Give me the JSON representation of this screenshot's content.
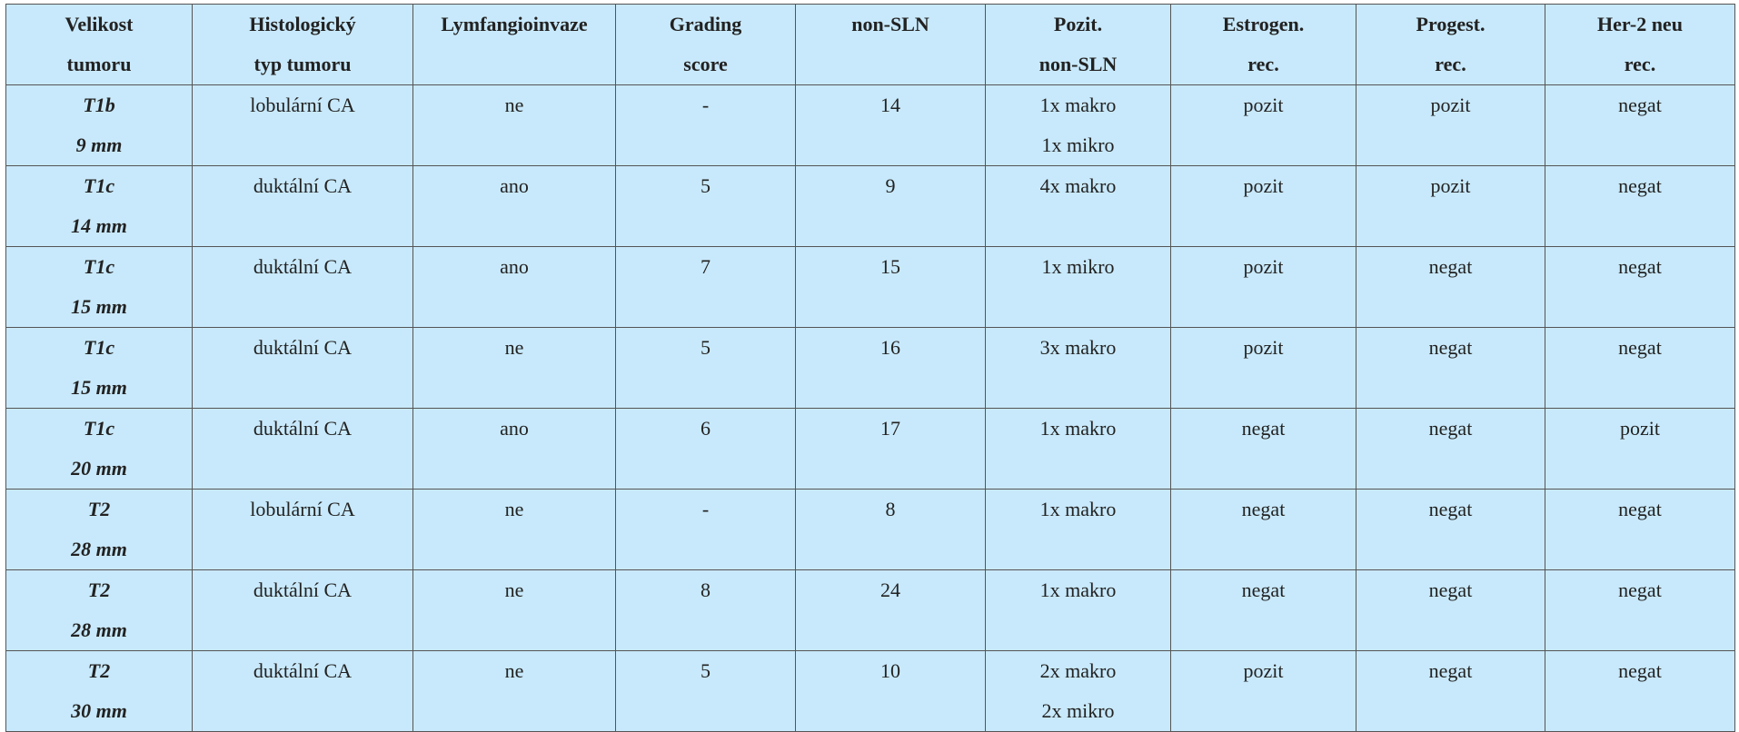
{
  "table": {
    "header": [
      [
        "Velikost",
        "tumoru"
      ],
      [
        "Histologický",
        "typ tumoru"
      ],
      [
        "Lymfangioinvaze"
      ],
      [
        "Grading",
        "score"
      ],
      [
        "non-SLN"
      ],
      [
        "Pozit.",
        "non-SLN"
      ],
      [
        "Estrogen.",
        "rec."
      ],
      [
        "Progest.",
        "rec."
      ],
      [
        "Her-2 neu",
        "rec."
      ]
    ],
    "rows": [
      [
        [
          "T1b",
          "9 mm"
        ],
        [
          "lobulární CA"
        ],
        [
          "ne"
        ],
        [
          "-"
        ],
        [
          14
        ],
        [
          "1x makro",
          "1x mikro"
        ],
        [
          "pozit"
        ],
        [
          "pozit"
        ],
        [
          "negat"
        ]
      ],
      [
        [
          "T1c",
          "14 mm"
        ],
        [
          "duktální CA"
        ],
        [
          "ano"
        ],
        [
          5
        ],
        [
          9
        ],
        [
          "4x makro"
        ],
        [
          "pozit"
        ],
        [
          "pozit"
        ],
        [
          "negat"
        ]
      ],
      [
        [
          "T1c",
          "15 mm"
        ],
        [
          "duktální CA"
        ],
        [
          "ano"
        ],
        [
          7
        ],
        [
          15
        ],
        [
          "1x mikro"
        ],
        [
          "pozit"
        ],
        [
          "negat"
        ],
        [
          "negat"
        ]
      ],
      [
        [
          "T1c",
          "15 mm"
        ],
        [
          "duktální CA"
        ],
        [
          "ne"
        ],
        [
          5
        ],
        [
          16
        ],
        [
          "3x makro"
        ],
        [
          "pozit"
        ],
        [
          "negat"
        ],
        [
          "negat"
        ]
      ],
      [
        [
          "T1c",
          "20 mm"
        ],
        [
          "duktální CA"
        ],
        [
          "ano"
        ],
        [
          6
        ],
        [
          17
        ],
        [
          "1x makro"
        ],
        [
          "negat"
        ],
        [
          "negat"
        ],
        [
          "pozit"
        ]
      ],
      [
        [
          "T2",
          "28 mm"
        ],
        [
          "lobulární CA"
        ],
        [
          "ne"
        ],
        [
          "-"
        ],
        [
          8
        ],
        [
          "1x makro"
        ],
        [
          "negat"
        ],
        [
          "negat"
        ],
        [
          "negat"
        ]
      ],
      [
        [
          "T2",
          "28 mm"
        ],
        [
          "duktální CA"
        ],
        [
          "ne"
        ],
        [
          8
        ],
        [
          24
        ],
        [
          "1x makro"
        ],
        [
          "negat"
        ],
        [
          "negat"
        ],
        [
          "negat"
        ]
      ],
      [
        [
          "T2",
          "30 mm"
        ],
        [
          "duktální CA"
        ],
        [
          "ne"
        ],
        [
          5
        ],
        [
          10
        ],
        [
          "2x makro",
          "2x mikro"
        ],
        [
          "pozit"
        ],
        [
          "negat"
        ],
        [
          "negat"
        ]
      ]
    ]
  }
}
